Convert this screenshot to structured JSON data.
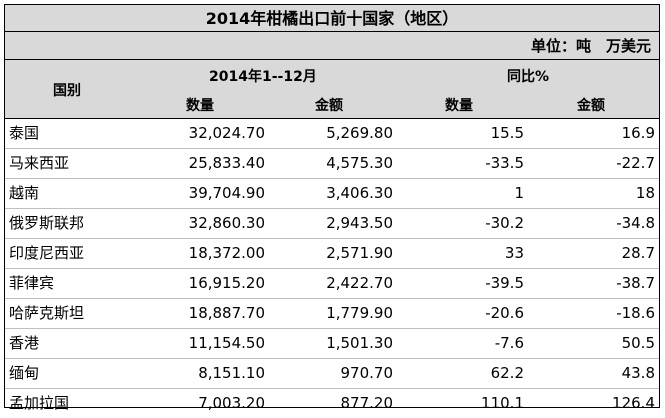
{
  "title": "2014年柑橘出口前十国家（地区）",
  "unit": "单位：吨　万美元",
  "header": {
    "country": "国别",
    "period": "2014年1--12月",
    "yoy": "同比%",
    "qty": "数量",
    "amount": "金额",
    "yoy_qty": "数量",
    "yoy_amount": "金额"
  },
  "rows": [
    {
      "country": "泰国",
      "qty": "32,024.70",
      "amount": "5,269.80",
      "yoy_qty": "15.5",
      "yoy_amount": "16.9"
    },
    {
      "country": "马来西亚",
      "qty": "25,833.40",
      "amount": "4,575.30",
      "yoy_qty": "-33.5",
      "yoy_amount": "-22.7"
    },
    {
      "country": "越南",
      "qty": "39,704.90",
      "amount": "3,406.30",
      "yoy_qty": "1",
      "yoy_amount": "18"
    },
    {
      "country": "俄罗斯联邦",
      "qty": "32,860.30",
      "amount": "2,943.50",
      "yoy_qty": "-30.2",
      "yoy_amount": "-34.8"
    },
    {
      "country": "印度尼西亚",
      "qty": "18,372.00",
      "amount": "2,571.90",
      "yoy_qty": "33",
      "yoy_amount": "28.7"
    },
    {
      "country": "菲律宾",
      "qty": "16,915.20",
      "amount": "2,422.70",
      "yoy_qty": "-39.5",
      "yoy_amount": "-38.7"
    },
    {
      "country": "哈萨克斯坦",
      "qty": "18,887.70",
      "amount": "1,779.90",
      "yoy_qty": "-20.6",
      "yoy_amount": "-18.6"
    },
    {
      "country": "香港",
      "qty": "11,154.50",
      "amount": "1,501.30",
      "yoy_qty": "-7.6",
      "yoy_amount": "50.5"
    },
    {
      "country": "缅甸",
      "qty": "8,151.10",
      "amount": "970.70",
      "yoy_qty": "62.2",
      "yoy_amount": "43.8"
    },
    {
      "country": "孟加拉国",
      "qty": "7,003.20",
      "amount": "877.20",
      "yoy_qty": "110.1",
      "yoy_amount": "126.4"
    }
  ]
}
